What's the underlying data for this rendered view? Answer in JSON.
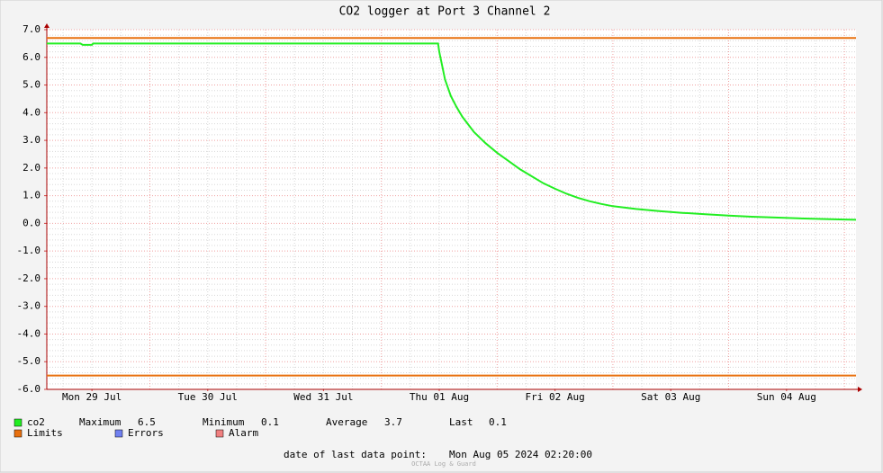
{
  "chart_data": {
    "type": "line",
    "title": "CO2 logger at Port 3 Channel 2",
    "x": [
      0.11,
      0.4,
      0.42,
      0.5,
      0.51,
      3.49,
      3.5,
      3.52,
      3.55,
      3.6,
      3.65,
      3.7,
      3.8,
      3.9,
      4.0,
      4.1,
      4.2,
      4.3,
      4.4,
      4.5,
      4.6,
      4.7,
      4.8,
      4.9,
      5.0,
      5.2,
      5.4,
      5.6,
      5.8,
      6.0,
      6.2,
      6.4,
      6.6,
      6.8,
      7.0,
      7.1
    ],
    "series": [
      {
        "name": "co2",
        "color": "#22ee22",
        "values": [
          6.5,
          6.5,
          6.45,
          6.45,
          6.5,
          6.5,
          6.2,
          5.8,
          5.2,
          4.6,
          4.2,
          3.85,
          3.3,
          2.9,
          2.55,
          2.25,
          1.95,
          1.7,
          1.45,
          1.25,
          1.07,
          0.92,
          0.8,
          0.7,
          0.62,
          0.52,
          0.44,
          0.38,
          0.33,
          0.28,
          0.24,
          0.21,
          0.18,
          0.16,
          0.14,
          0.13
        ]
      }
    ],
    "limits": {
      "name": "Limits",
      "color": "#e8700f",
      "values": [
        6.7,
        -5.5
      ]
    },
    "legend_extra": [
      {
        "name": "Errors",
        "color": "#7080f0"
      },
      {
        "name": "Alarm",
        "color": "#f08080"
      }
    ],
    "stats": [
      {
        "label": "Maximum",
        "value": 6.5
      },
      {
        "label": "Minimum",
        "value": 0.1
      },
      {
        "label": "Average",
        "value": 3.7
      },
      {
        "label": "Last",
        "value": 0.1
      }
    ],
    "xlim": [
      0.11,
      7.1
    ],
    "xticks": [
      {
        "value": 0.5,
        "label": "Mon 29 Jul"
      },
      {
        "value": 1.5,
        "label": "Tue 30 Jul"
      },
      {
        "value": 2.5,
        "label": "Wed 31 Jul"
      },
      {
        "value": 3.5,
        "label": "Thu 01 Aug"
      },
      {
        "value": 4.5,
        "label": "Fri 02 Aug"
      },
      {
        "value": 5.5,
        "label": "Sat 03 Aug"
      },
      {
        "value": 6.5,
        "label": "Sun 04 Aug"
      }
    ],
    "ylim": [
      -6,
      7
    ],
    "yticks": [
      {
        "value": 7,
        "label": "7.0"
      },
      {
        "value": 6,
        "label": "6.0"
      },
      {
        "value": 5,
        "label": "5.0"
      },
      {
        "value": 4,
        "label": "4.0"
      },
      {
        "value": 3,
        "label": "3.0"
      },
      {
        "value": 2,
        "label": "2.0"
      },
      {
        "value": 1,
        "label": "1.0"
      },
      {
        "value": 0,
        "label": "0.0"
      },
      {
        "value": -1,
        "label": "-1.0"
      },
      {
        "value": -2,
        "label": "-2.0"
      },
      {
        "value": -3,
        "label": "-3.0"
      },
      {
        "value": -4,
        "label": "-4.0"
      },
      {
        "value": -5,
        "label": "-5.0"
      },
      {
        "value": -6,
        "label": "-6.0"
      }
    ],
    "grid": true,
    "footer_label": "date of last data point:",
    "footer_date": "Mon Aug 05 2024 02:20:00",
    "watermark": "OCTAA Log & Guard"
  }
}
